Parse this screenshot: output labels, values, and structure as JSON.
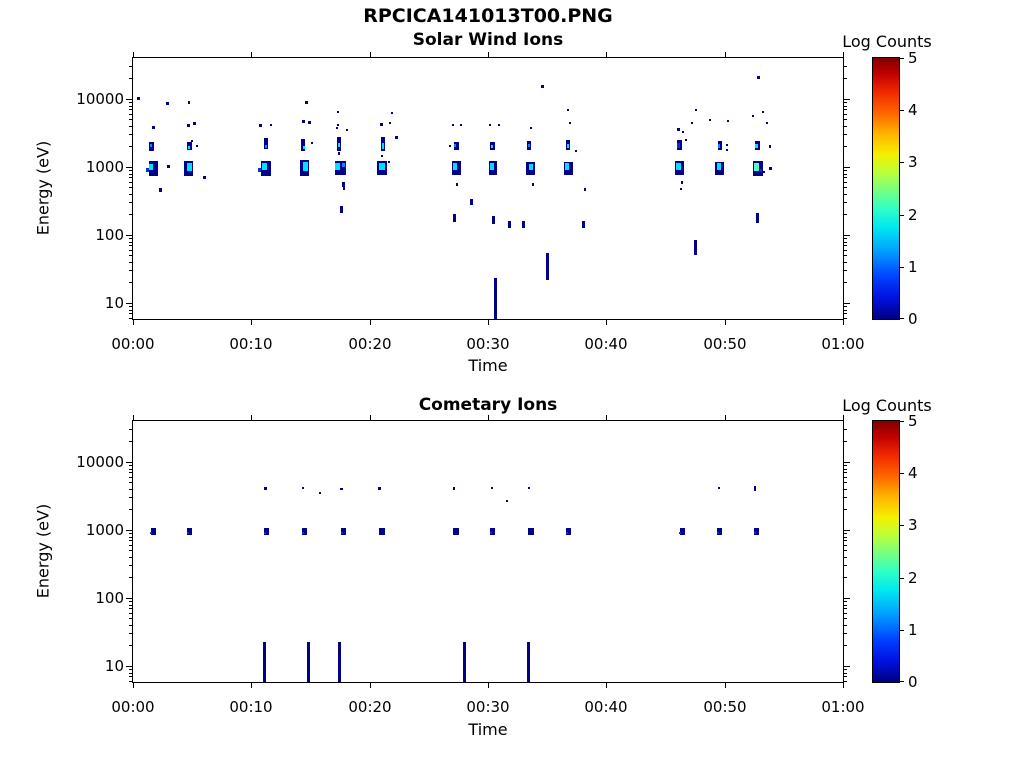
{
  "title": "RPCICA141013T00.PNG",
  "palette": {
    "0": "#000089",
    "1": "#0033DD",
    "1.5": "#008CFF",
    "2": "#00E0FF",
    "2.5": "#55FFCC"
  },
  "colorbar_gradient": [
    [
      0,
      "#000082"
    ],
    [
      0.08,
      "#0010E1"
    ],
    [
      0.16,
      "#0040FF"
    ],
    [
      0.26,
      "#009FFF"
    ],
    [
      0.35,
      "#00E8F0"
    ],
    [
      0.42,
      "#2CFFC9"
    ],
    [
      0.5,
      "#7DFF79"
    ],
    [
      0.56,
      "#BAFF3C"
    ],
    [
      0.63,
      "#F4F000"
    ],
    [
      0.71,
      "#FFB400"
    ],
    [
      0.79,
      "#FF6400"
    ],
    [
      0.87,
      "#F02800"
    ],
    [
      0.94,
      "#C00000"
    ],
    [
      1,
      "#800000"
    ]
  ],
  "chart_data": [
    {
      "type": "heatmap",
      "title": "Solar Wind Ions",
      "xlabel": "Time",
      "ylabel": "Energy (eV)",
      "x_ticks": [
        "00:00",
        "00:10",
        "00:20",
        "00:30",
        "00:40",
        "00:50",
        "01:00"
      ],
      "x_tick_minutes": [
        0,
        10,
        20,
        30,
        40,
        50,
        60
      ],
      "y_ticks": [
        "10",
        "100",
        "1000",
        "10000"
      ],
      "y_tick_values": [
        10,
        100,
        1000,
        10000
      ],
      "y_scale": "log",
      "y_range_ev": [
        5.8,
        40000
      ],
      "grid": false,
      "colorbar_label": "Log Counts",
      "colorbar_ticks": [
        "0",
        "1",
        "2",
        "3",
        "4",
        "5"
      ],
      "colorbar_range": [
        0,
        5
      ],
      "points_format": [
        "time_min",
        "energy_ev",
        "w_px",
        "h_px",
        "log_counts_level"
      ],
      "points": [
        [
          0.45,
          10200,
          3,
          3,
          "0"
        ],
        [
          2.9,
          8700,
          3,
          3,
          "0"
        ],
        [
          14.7,
          9000,
          3,
          3,
          "0"
        ],
        [
          34.6,
          15000,
          3,
          3,
          "0"
        ],
        [
          52.9,
          21000,
          3,
          3,
          "0"
        ],
        [
          1.7,
          950,
          9,
          15,
          "0"
        ],
        [
          1.55,
          1000,
          4,
          6,
          "2"
        ],
        [
          1.25,
          900,
          3,
          4,
          "1"
        ],
        [
          1.6,
          2000,
          5,
          9,
          "0"
        ],
        [
          1.5,
          2050,
          2,
          3,
          "1.5"
        ],
        [
          1.7,
          3750,
          3,
          3,
          "0"
        ],
        [
          2.3,
          460,
          3,
          4,
          "0"
        ],
        [
          3.0,
          1030,
          3,
          3,
          "0"
        ],
        [
          4.7,
          950,
          9,
          15,
          "0"
        ],
        [
          4.8,
          1000,
          5,
          8,
          "2"
        ],
        [
          4.8,
          2000,
          5,
          8,
          "0"
        ],
        [
          4.75,
          1950,
          2,
          3,
          "2"
        ],
        [
          4.7,
          4000,
          3,
          3,
          "0"
        ],
        [
          5.2,
          4400,
          3,
          3,
          "0"
        ],
        [
          4.7,
          9000,
          2,
          3,
          "0"
        ],
        [
          4.95,
          2400,
          2,
          2,
          "0"
        ],
        [
          5.45,
          2000,
          2,
          2,
          "0"
        ],
        [
          6.0,
          690,
          3,
          3,
          "0"
        ],
        [
          11.2,
          950,
          10,
          15,
          "0"
        ],
        [
          11.1,
          1000,
          5,
          7,
          "2"
        ],
        [
          10.65,
          900,
          3,
          4,
          "1"
        ],
        [
          11.2,
          2200,
          4,
          11,
          "0"
        ],
        [
          11.2,
          2000,
          2,
          3,
          "1.5"
        ],
        [
          10.8,
          4100,
          3,
          3,
          "0"
        ],
        [
          11.7,
          4100,
          2,
          2,
          "0"
        ],
        [
          14.5,
          950,
          9,
          16,
          "0"
        ],
        [
          14.6,
          1000,
          5,
          9,
          "2"
        ],
        [
          14.4,
          2100,
          4,
          12,
          "0"
        ],
        [
          14.45,
          1950,
          2,
          3,
          "2"
        ],
        [
          14.4,
          4600,
          3,
          3,
          "0"
        ],
        [
          14.9,
          4500,
          3,
          3,
          "0"
        ],
        [
          15.1,
          2250,
          2,
          2,
          "0"
        ],
        [
          17.5,
          950,
          11,
          14,
          "0"
        ],
        [
          17.3,
          1000,
          5,
          7,
          "2"
        ],
        [
          17.8,
          1050,
          3,
          4,
          "1.5"
        ],
        [
          17.4,
          2150,
          4,
          14,
          "0"
        ],
        [
          17.4,
          2100,
          2,
          4,
          "2"
        ],
        [
          17.4,
          1600,
          2,
          3,
          "0"
        ],
        [
          17.3,
          4100,
          2,
          2,
          "0"
        ],
        [
          17.2,
          3800,
          2,
          2,
          "0"
        ],
        [
          18.1,
          3500,
          2,
          2,
          "0"
        ],
        [
          17.3,
          6400,
          2,
          2,
          "0"
        ],
        [
          17.8,
          560,
          3,
          5,
          "0"
        ],
        [
          17.8,
          480,
          2,
          3,
          "0"
        ],
        [
          17.6,
          235,
          3,
          7,
          "0"
        ],
        [
          21.0,
          950,
          10,
          14,
          "0"
        ],
        [
          21.0,
          1000,
          6,
          7,
          "2"
        ],
        [
          21.6,
          1200,
          2,
          2,
          "0"
        ],
        [
          21.1,
          2150,
          4,
          14,
          "0"
        ],
        [
          21.1,
          2050,
          2,
          6,
          "2"
        ],
        [
          21.0,
          1450,
          2,
          2,
          "0"
        ],
        [
          21.0,
          4150,
          3,
          3,
          "0"
        ],
        [
          21.7,
          4400,
          2,
          2,
          "0"
        ],
        [
          21.9,
          6200,
          2,
          2,
          "0"
        ],
        [
          22.3,
          2750,
          3,
          3,
          "0"
        ],
        [
          27.3,
          950,
          9,
          14,
          "0"
        ],
        [
          27.2,
          1000,
          4,
          7,
          "2"
        ],
        [
          27.3,
          2050,
          5,
          8,
          "0"
        ],
        [
          27.2,
          2100,
          2,
          3,
          "1.5"
        ],
        [
          26.8,
          2000,
          2,
          2,
          "0"
        ],
        [
          27.0,
          4100,
          2,
          2,
          "0"
        ],
        [
          27.7,
          4200,
          2,
          2,
          "0"
        ],
        [
          27.4,
          550,
          2,
          3,
          "0"
        ],
        [
          27.2,
          175,
          3,
          8,
          "0"
        ],
        [
          28.6,
          300,
          3,
          6,
          "0"
        ],
        [
          30.4,
          950,
          8,
          14,
          "0"
        ],
        [
          30.3,
          1000,
          4,
          7,
          "2"
        ],
        [
          30.4,
          2000,
          5,
          8,
          "0"
        ],
        [
          30.35,
          1970,
          2,
          3,
          "2"
        ],
        [
          30.2,
          4100,
          2,
          2,
          "0"
        ],
        [
          30.9,
          4100,
          2,
          2,
          "0"
        ],
        [
          30.5,
          165,
          3,
          8,
          "0"
        ],
        [
          30.6,
          11.5,
          3,
          41,
          "0"
        ],
        [
          31.8,
          140,
          3,
          7,
          "0"
        ],
        [
          33.6,
          950,
          9,
          13,
          "0"
        ],
        [
          33.6,
          1000,
          4,
          6,
          "2"
        ],
        [
          33.5,
          2050,
          4,
          9,
          "0"
        ],
        [
          33.5,
          2100,
          2,
          3,
          "1.5"
        ],
        [
          33.6,
          3750,
          2,
          2,
          "0"
        ],
        [
          33.8,
          550,
          2,
          3,
          "0"
        ],
        [
          33.0,
          140,
          3,
          7,
          "0"
        ],
        [
          35.0,
          34,
          3,
          27,
          "0"
        ],
        [
          36.8,
          950,
          9,
          13,
          "0"
        ],
        [
          36.7,
          1000,
          4,
          7,
          "2"
        ],
        [
          36.8,
          2100,
          4,
          10,
          "0"
        ],
        [
          36.75,
          2000,
          2,
          4,
          "2"
        ],
        [
          36.9,
          4400,
          2,
          2,
          "0"
        ],
        [
          36.8,
          6900,
          2,
          2,
          "0"
        ],
        [
          37.4,
          1720,
          2,
          2,
          "0"
        ],
        [
          38.2,
          460,
          2,
          3,
          "0"
        ],
        [
          38.1,
          140,
          3,
          7,
          "0"
        ],
        [
          46.2,
          950,
          9,
          14,
          "0"
        ],
        [
          46.1,
          1000,
          5,
          7,
          "2"
        ],
        [
          46.2,
          2100,
          5,
          10,
          "0"
        ],
        [
          46.1,
          2100,
          3,
          5,
          "1"
        ],
        [
          46.7,
          2500,
          2,
          2,
          "0"
        ],
        [
          46.1,
          3500,
          3,
          3,
          "0"
        ],
        [
          46.5,
          3300,
          2,
          2,
          "0"
        ],
        [
          47.6,
          6900,
          2,
          2,
          "0"
        ],
        [
          47.2,
          4400,
          2,
          2,
          "0"
        ],
        [
          46.4,
          600,
          2,
          3,
          "0"
        ],
        [
          46.3,
          480,
          2,
          2,
          "0"
        ],
        [
          47.5,
          65,
          3,
          15,
          "0"
        ],
        [
          49.6,
          950,
          9,
          13,
          "0"
        ],
        [
          49.5,
          1000,
          4,
          7,
          "2"
        ],
        [
          49.6,
          2050,
          4,
          9,
          "0"
        ],
        [
          49.5,
          2050,
          2,
          4,
          "1.5"
        ],
        [
          50.2,
          2100,
          2,
          2,
          "0"
        ],
        [
          50.2,
          1800,
          2,
          2,
          "0"
        ],
        [
          50.3,
          4700,
          2,
          2,
          "0"
        ],
        [
          48.8,
          4900,
          2,
          2,
          "0"
        ],
        [
          52.8,
          950,
          10,
          15,
          "0"
        ],
        [
          52.7,
          1000,
          5,
          8,
          "2.5"
        ],
        [
          53.1,
          900,
          2,
          3,
          "1"
        ],
        [
          52.8,
          2050,
          5,
          9,
          "0"
        ],
        [
          52.7,
          2000,
          3,
          4,
          "2"
        ],
        [
          53.8,
          2000,
          2,
          3,
          "0"
        ],
        [
          53.9,
          950,
          3,
          3,
          "0"
        ],
        [
          53.3,
          850,
          2,
          2,
          "0"
        ],
        [
          52.4,
          5600,
          2,
          2,
          "0"
        ],
        [
          53.2,
          6400,
          2,
          2,
          "0"
        ],
        [
          53.6,
          4500,
          2,
          2,
          "0"
        ],
        [
          52.8,
          180,
          3,
          10,
          "0"
        ]
      ]
    },
    {
      "type": "heatmap",
      "title": "Cometary Ions",
      "xlabel": "Time",
      "ylabel": "Energy (eV)",
      "x_ticks": [
        "00:00",
        "00:10",
        "00:20",
        "00:30",
        "00:40",
        "00:50",
        "01:00"
      ],
      "x_tick_minutes": [
        0,
        10,
        20,
        30,
        40,
        50,
        60
      ],
      "y_ticks": [
        "10",
        "100",
        "1000",
        "10000"
      ],
      "y_tick_values": [
        10,
        100,
        1000,
        10000
      ],
      "y_scale": "log",
      "y_range_ev": [
        5.8,
        40000
      ],
      "grid": false,
      "colorbar_label": "Log Counts",
      "colorbar_ticks": [
        "0",
        "1",
        "2",
        "3",
        "4",
        "5"
      ],
      "colorbar_range": [
        0,
        5
      ],
      "points_format": [
        "time_min",
        "energy_ev",
        "w_px",
        "h_px",
        "log_counts_level"
      ],
      "points": [
        [
          1.7,
          950,
          5,
          7,
          "0"
        ],
        [
          1.55,
          900,
          2,
          2,
          "1"
        ],
        [
          4.8,
          950,
          5,
          7,
          "0"
        ],
        [
          4.65,
          900,
          2,
          2,
          "1"
        ],
        [
          11.3,
          950,
          5,
          7,
          "0"
        ],
        [
          11.15,
          900,
          2,
          2,
          "1"
        ],
        [
          14.5,
          950,
          5,
          7,
          "0"
        ],
        [
          14.35,
          900,
          2,
          2,
          "1"
        ],
        [
          17.8,
          950,
          5,
          7,
          "0"
        ],
        [
          17.65,
          900,
          2,
          2,
          "1"
        ],
        [
          21.0,
          950,
          6,
          7,
          "0"
        ],
        [
          27.3,
          950,
          6,
          7,
          "0"
        ],
        [
          30.4,
          950,
          5,
          7,
          "0"
        ],
        [
          30.25,
          900,
          2,
          2,
          "1"
        ],
        [
          33.65,
          950,
          6,
          7,
          "0"
        ],
        [
          36.8,
          950,
          5,
          7,
          "0"
        ],
        [
          36.65,
          900,
          2,
          2,
          "1"
        ],
        [
          46.4,
          950,
          5,
          7,
          "0"
        ],
        [
          46.25,
          900,
          2,
          2,
          "1"
        ],
        [
          49.6,
          950,
          5,
          7,
          "0"
        ],
        [
          49.45,
          900,
          2,
          2,
          "1"
        ],
        [
          52.7,
          950,
          5,
          7,
          "0"
        ],
        [
          52.55,
          900,
          2,
          2,
          "1"
        ],
        [
          11.2,
          4100,
          3,
          3,
          "0"
        ],
        [
          14.4,
          4100,
          2,
          2,
          "0"
        ],
        [
          15.8,
          3500,
          2,
          2,
          "0"
        ],
        [
          17.6,
          4000,
          3,
          2,
          "0"
        ],
        [
          20.8,
          4100,
          3,
          3,
          "0"
        ],
        [
          27.1,
          4100,
          2,
          3,
          "0"
        ],
        [
          30.3,
          4100,
          2,
          2,
          "0"
        ],
        [
          31.6,
          2700,
          2,
          2,
          "0"
        ],
        [
          33.5,
          4100,
          2,
          2,
          "0"
        ],
        [
          49.5,
          4100,
          2,
          2,
          "0"
        ],
        [
          52.6,
          4000,
          2,
          5,
          "0"
        ],
        [
          11.1,
          11.6,
          3,
          40,
          "0"
        ],
        [
          14.85,
          11.6,
          3,
          40,
          "0"
        ],
        [
          17.45,
          11.6,
          3,
          40,
          "0"
        ],
        [
          28.05,
          11.6,
          3,
          40,
          "0"
        ],
        [
          33.45,
          11.6,
          3,
          40,
          "0"
        ]
      ]
    }
  ]
}
